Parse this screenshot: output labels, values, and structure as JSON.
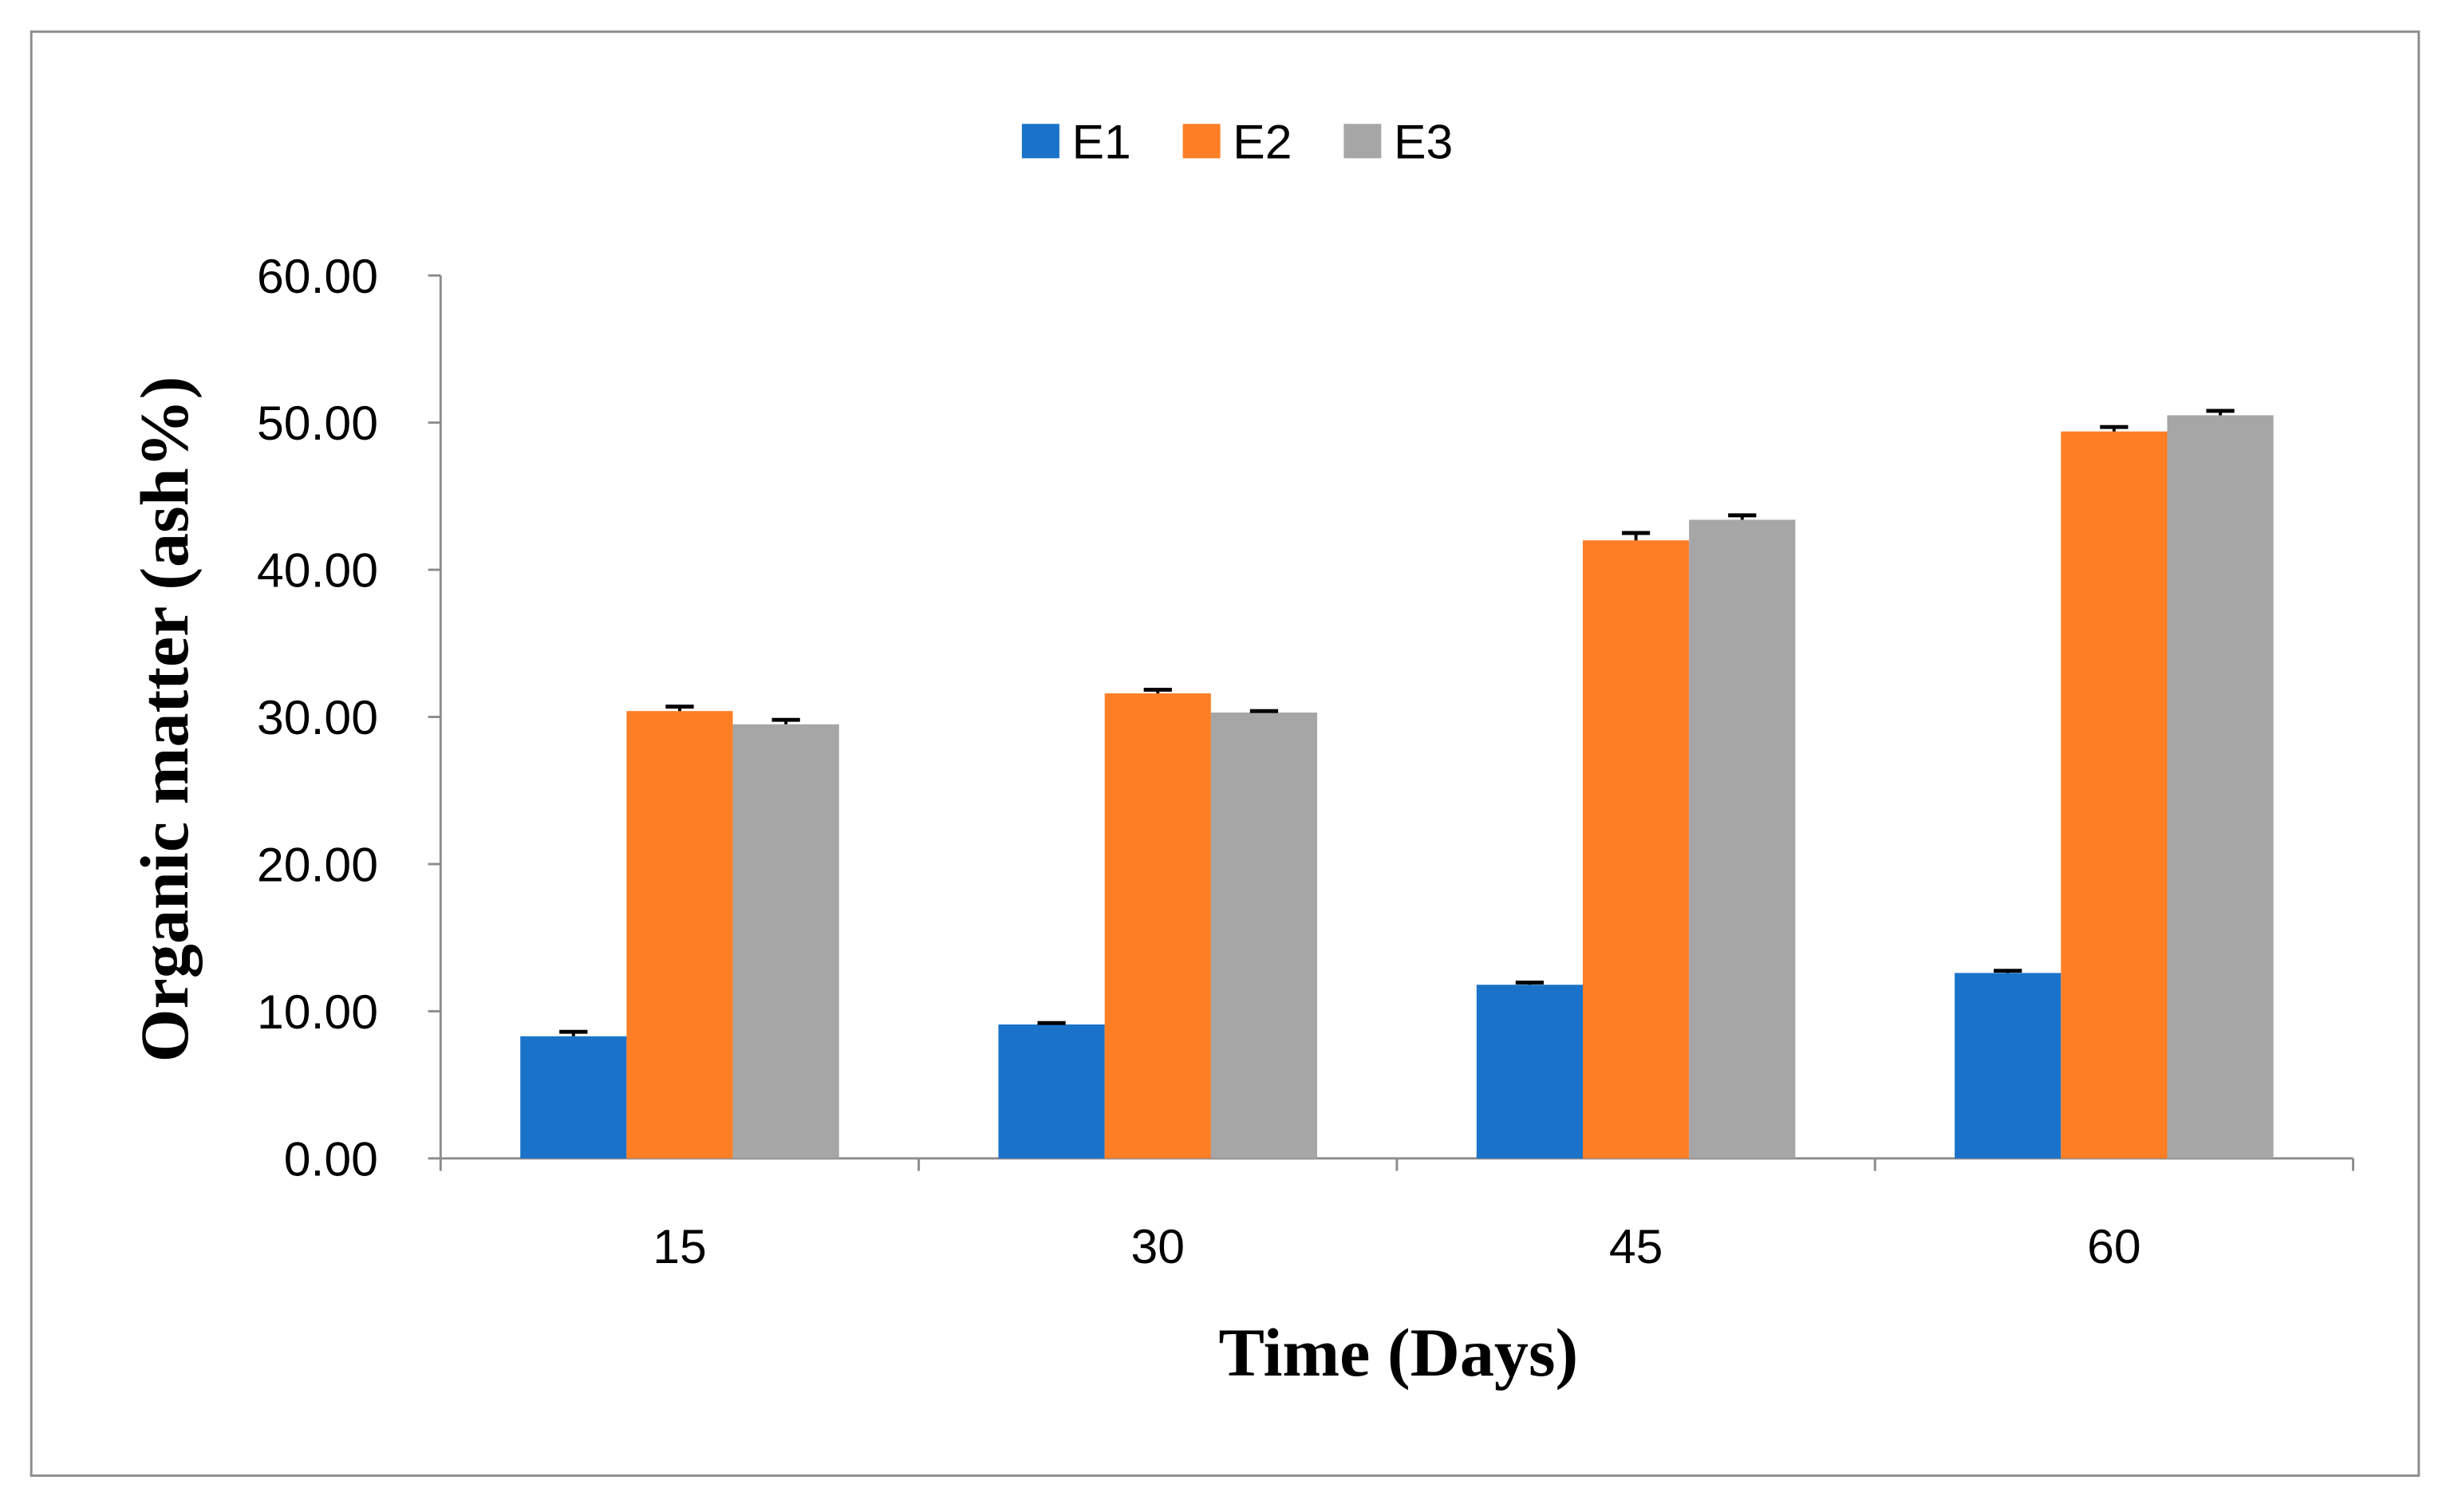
{
  "chart_data": {
    "type": "bar",
    "title": "",
    "xlabel": "Time (Days)",
    "ylabel": "Organic matter (ash%)",
    "categories": [
      "15",
      "30",
      "45",
      "60"
    ],
    "ylim": [
      0,
      60
    ],
    "yticks": [
      "0.00",
      "10.00",
      "20.00",
      "30.00",
      "40.00",
      "50.00",
      "60.00"
    ],
    "grid": false,
    "legend_position": "top",
    "error_bars": true,
    "series": [
      {
        "name": "E1",
        "color": "#1a73c8",
        "values": [
          8.3,
          9.1,
          11.8,
          12.6
        ],
        "errors": [
          0.3,
          0.1,
          0.15,
          0.15
        ]
      },
      {
        "name": "E2",
        "color": "#fe7e26",
        "values": [
          30.4,
          31.6,
          42.0,
          49.4
        ],
        "errors": [
          0.3,
          0.25,
          0.5,
          0.3
        ]
      },
      {
        "name": "E3",
        "color": "#a6a6a6",
        "values": [
          29.5,
          30.3,
          43.4,
          50.5
        ],
        "errors": [
          0.3,
          0.1,
          0.3,
          0.3
        ]
      }
    ]
  }
}
